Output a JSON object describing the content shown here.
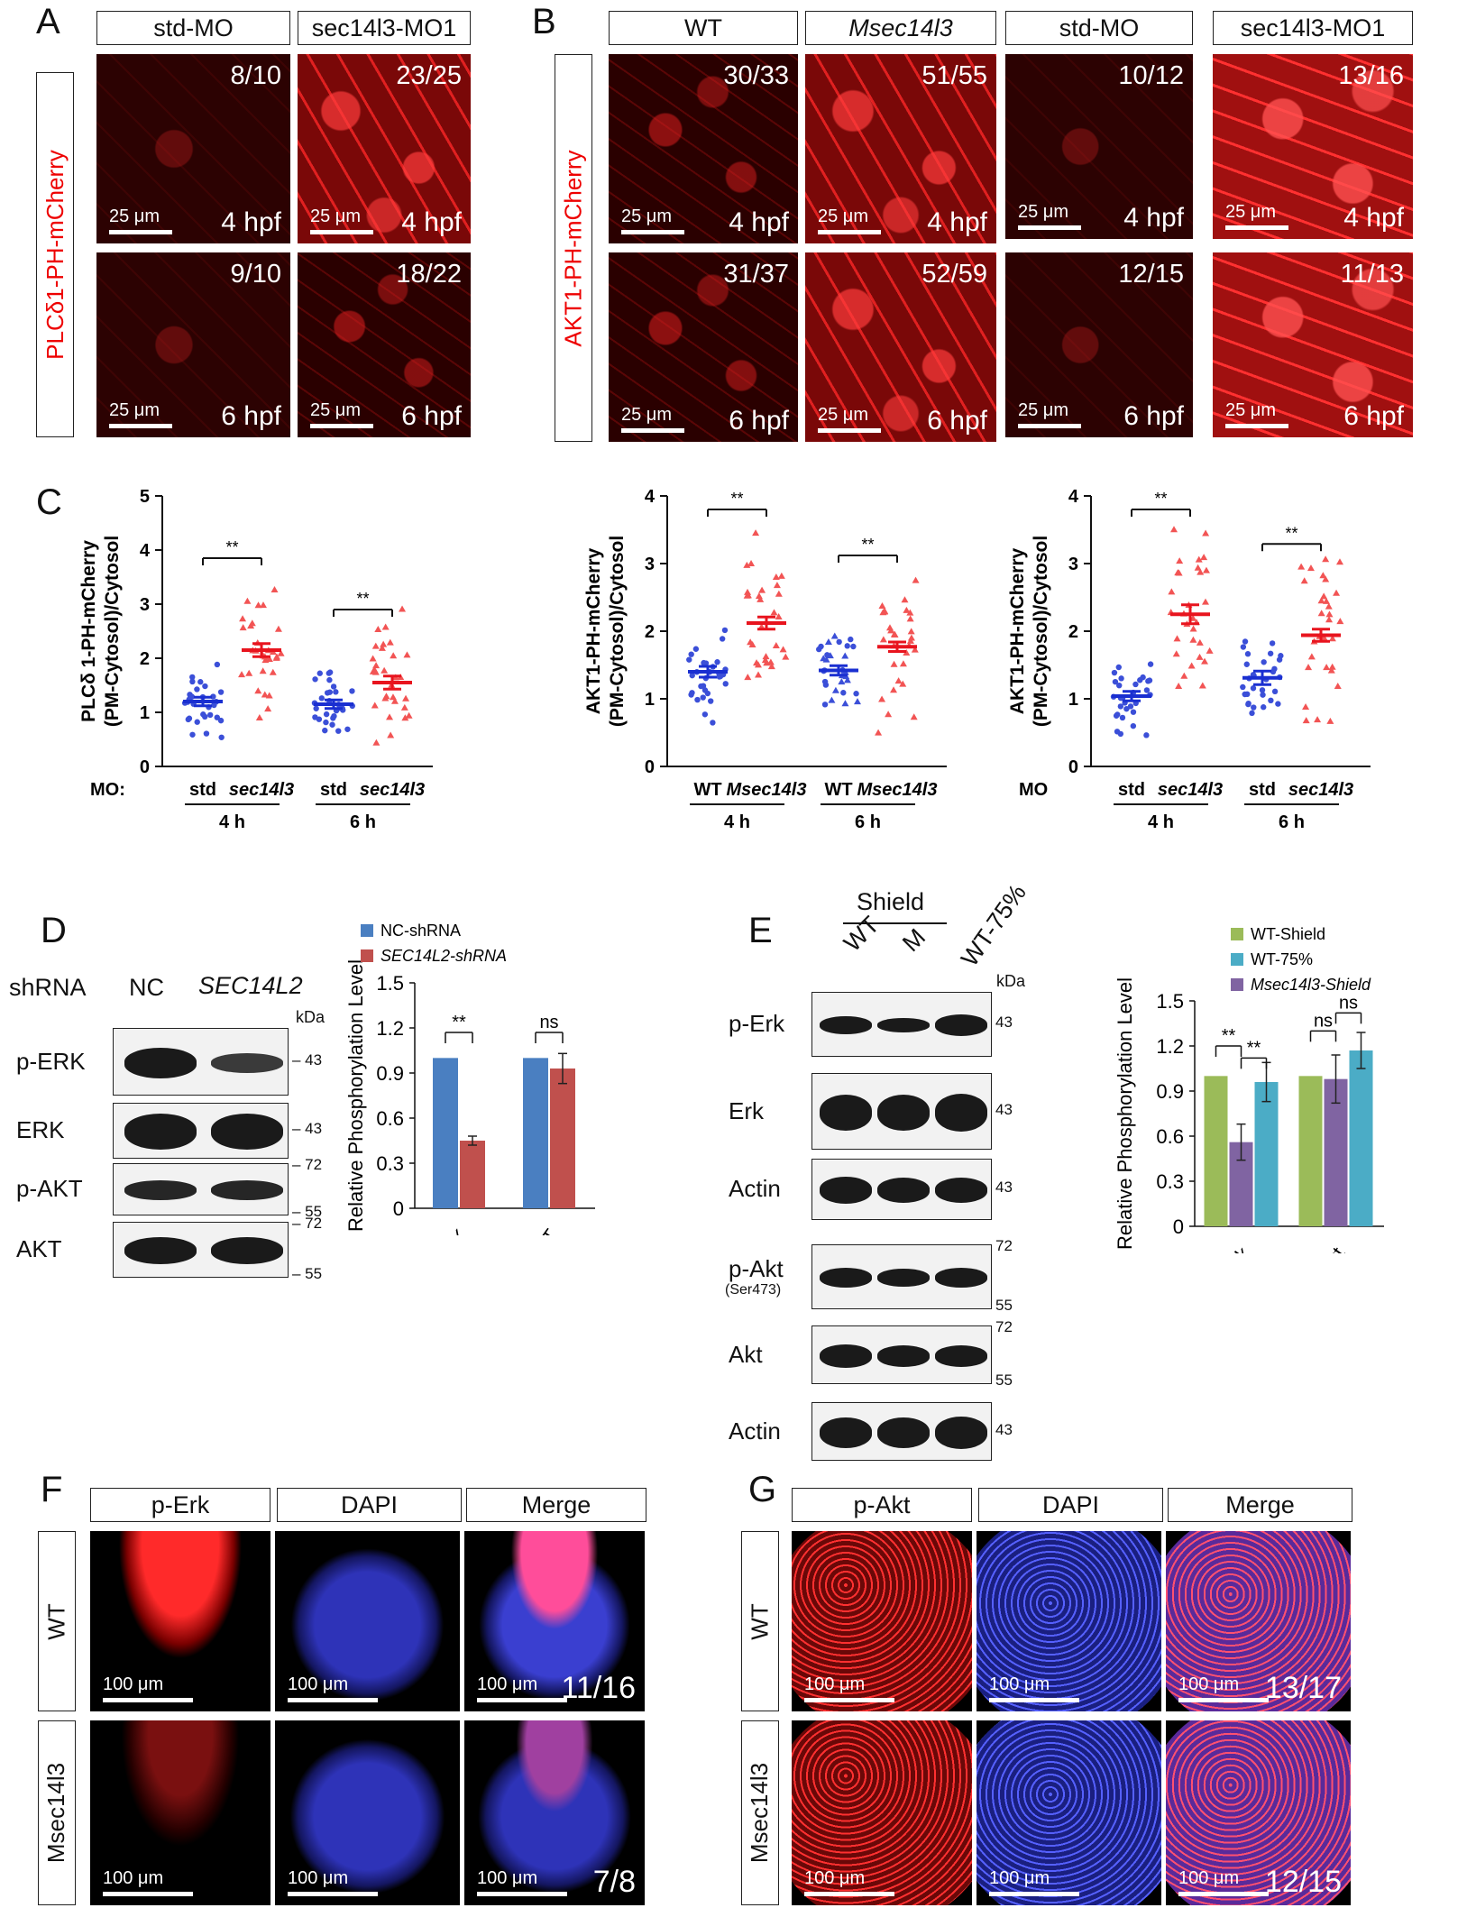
{
  "panelA": {
    "label": "A",
    "cols": [
      "std-MO",
      "sec14l3-MO1"
    ],
    "row_label": "PLCδ1-PH-mCherry",
    "cells": [
      {
        "count": "8/10",
        "time": "4 hpf",
        "scale": "25 μm"
      },
      {
        "count": "23/25",
        "time": "4 hpf",
        "scale": "25 μm"
      },
      {
        "count": "9/10",
        "time": "6 hpf",
        "scale": "25 μm"
      },
      {
        "count": "18/22",
        "time": "6 hpf",
        "scale": "25 μm"
      }
    ]
  },
  "panelB": {
    "label": "B",
    "cols": [
      "WT",
      "Msec14l3",
      "std-MO",
      "sec14l3-MO1"
    ],
    "row_label": "AKT1-PH-mCherry",
    "cells": [
      {
        "count": "30/33",
        "time": "4 hpf",
        "scale": "25 μm"
      },
      {
        "count": "51/55",
        "time": "4 hpf",
        "scale": "25 μm"
      },
      {
        "count": "10/12",
        "time": "4 hpf",
        "scale": "25 μm"
      },
      {
        "count": "13/16",
        "time": "4 hpf",
        "scale": "25 μm"
      },
      {
        "count": "31/37",
        "time": "6 hpf",
        "scale": "25 μm"
      },
      {
        "count": "52/59",
        "time": "6 hpf",
        "scale": "25 μm"
      },
      {
        "count": "12/15",
        "time": "6 hpf",
        "scale": "25 μm"
      },
      {
        "count": "11/13",
        "time": "6 hpf",
        "scale": "25 μm"
      }
    ]
  },
  "panelC": {
    "label": "C",
    "plot1": {
      "ylabel1": "PLCδ 1-PH-mCherry",
      "ylabel2": "(PM-Cytosol)/Cytosol",
      "yticks": [
        "0",
        "1",
        "2",
        "3",
        "4",
        "5"
      ],
      "row_prefix": "MO:",
      "xlabels": [
        "std",
        "sec14l3",
        "std",
        "sec14l3"
      ],
      "groups": [
        "4 h",
        "6 h"
      ],
      "sig": [
        "**",
        "**"
      ]
    },
    "plot2": {
      "ylabel1": "AKT1-PH-mCherry",
      "ylabel2": "(PM-Cytosol)/Cytosol",
      "yticks": [
        "0",
        "1",
        "2",
        "3",
        "4"
      ],
      "xlabels": [
        "WT",
        "Msec14l3",
        "WT",
        "Msec14l3"
      ],
      "groups": [
        "4 h",
        "6 h"
      ],
      "sig": [
        "**",
        "**"
      ]
    },
    "plot3": {
      "ylabel1": "AKT1-PH-mCherry",
      "ylabel2": "(PM-Cytosol)/Cytosol",
      "yticks": [
        "0",
        "1",
        "2",
        "3",
        "4"
      ],
      "row_prefix": "MO",
      "xlabels": [
        "std",
        "sec14l3",
        "std",
        "sec14l3"
      ],
      "groups": [
        "4 h",
        "6 h"
      ],
      "sig": [
        "**",
        "**"
      ]
    }
  },
  "panelD": {
    "label": "D",
    "shrna_label": "shRNA",
    "lanes": [
      "NC",
      "SEC14L2"
    ],
    "kda": "kDa",
    "rows": [
      {
        "name": "p-ERK",
        "marks": [
          "43"
        ]
      },
      {
        "name": "ERK",
        "marks": [
          "43"
        ]
      },
      {
        "name": "p-AKT",
        "marks": [
          "72",
          "55"
        ]
      },
      {
        "name": "AKT",
        "marks": [
          "72",
          "55"
        ]
      }
    ],
    "legend": [
      "NC-shRNA",
      "SEC14L2-shRNA"
    ],
    "ylabel": "Relative Phosphorylation Level",
    "sig": [
      "**",
      "ns"
    ]
  },
  "panelE": {
    "label": "E",
    "group": "Shield",
    "lanes": [
      "WT",
      "M",
      "WT-75%"
    ],
    "kda": "kDa",
    "rows": [
      {
        "name": "p-Erk",
        "sub": "",
        "marks": [
          "43"
        ]
      },
      {
        "name": "Erk",
        "sub": "",
        "marks": [
          "43"
        ]
      },
      {
        "name": "Actin",
        "sub": "",
        "marks": [
          "43"
        ]
      },
      {
        "name": "p-Akt",
        "sub": "(Ser473)",
        "marks": [
          "72",
          "55"
        ]
      },
      {
        "name": "Akt",
        "sub": "",
        "marks": [
          "72",
          "55"
        ]
      },
      {
        "name": "Actin",
        "sub": "",
        "marks": [
          "43"
        ]
      }
    ],
    "legend": [
      "WT-Shield",
      "WT-75%",
      "Msec14l3-Shield"
    ],
    "ylabel": "Relative Phosphorylation Level",
    "sig": [
      "**",
      "**",
      "ns",
      "ns"
    ]
  },
  "panelF": {
    "label": "F",
    "cols": [
      "p-Erk",
      "DAPI",
      "Merge"
    ],
    "rows": [
      "WT",
      "Msec14l3"
    ],
    "scale": "100 μm",
    "counts": [
      "11/16",
      "7/8"
    ]
  },
  "panelG": {
    "label": "G",
    "cols": [
      "p-Akt",
      "DAPI",
      "Merge"
    ],
    "rows": [
      "WT",
      "Msec14l3"
    ],
    "scale": "100 μm",
    "counts": [
      "13/17",
      "12/15"
    ]
  },
  "chart_data": [
    {
      "type": "scatter",
      "title": "",
      "ylabel": "PLCδ 1-PH-mCherry (PM-Cytosol)/Cytosol",
      "categories": [
        "std 4 h",
        "sec14l3 4 h",
        "std 6 h",
        "sec14l3 6 h"
      ],
      "ylim": [
        0,
        5
      ],
      "series": [
        {
          "values": [
            1.2,
            2.15,
            1.15,
            1.55
          ],
          "errors": [
            0.08,
            0.12,
            0.08,
            0.12
          ]
        }
      ]
    },
    {
      "type": "scatter",
      "title": "",
      "ylabel": "AKT1-PH-mCherry (PM-Cytosol)/Cytosol",
      "categories": [
        "WT 4 h",
        "Msec14l3 4 h",
        "WT 6 h",
        "Msec14l3 6 h"
      ],
      "ylim": [
        0,
        4
      ],
      "series": [
        {
          "values": [
            1.4,
            2.12,
            1.42,
            1.77
          ],
          "errors": [
            0.08,
            0.09,
            0.07,
            0.07
          ]
        }
      ]
    },
    {
      "type": "scatter",
      "title": "",
      "ylabel": "AKT1-PH-mCherry (PM-Cytosol)/Cytosol",
      "categories": [
        "std 4 h",
        "sec14l3 4 h",
        "std 6 h",
        "sec14l3 6 h"
      ],
      "ylim": [
        0,
        4
      ],
      "series": [
        {
          "values": [
            1.04,
            2.25,
            1.31,
            1.94
          ],
          "errors": [
            0.07,
            0.14,
            0.1,
            0.09
          ]
        }
      ]
    },
    {
      "type": "bar",
      "title": "",
      "ylabel": "Relative Phosphorylation Level",
      "categories": [
        "p-ERK/ERK",
        "p-AKT/AKT"
      ],
      "yticks": [
        "0",
        "0.3",
        "0.6",
        "0.9",
        "1.2",
        "1.5"
      ],
      "ylim": [
        0,
        1.5
      ],
      "series": [
        {
          "name": "NC-shRNA",
          "values": [
            1.0,
            1.0
          ],
          "errors": [
            0,
            0
          ],
          "color": "#4a7fc1"
        },
        {
          "name": "SEC14L2-shRNA",
          "values": [
            0.45,
            0.93
          ],
          "errors": [
            0.03,
            0.1
          ],
          "color": "#c0504d"
        }
      ]
    },
    {
      "type": "bar",
      "title": "",
      "ylabel": "Relative Phosphorylation Level",
      "categories": [
        "p-Erk/Erk",
        "p-Akt/Akt"
      ],
      "yticks": [
        "0",
        "0.3",
        "0.6",
        "0.9",
        "1.2",
        "1.5"
      ],
      "ylim": [
        0,
        1.5
      ],
      "series": [
        {
          "name": "WT-Shield",
          "values": [
            1.0,
            1.0
          ],
          "errors": [
            0,
            0
          ],
          "color": "#9bbb59"
        },
        {
          "name": "Msec14l3-Shield",
          "values": [
            0.56,
            0.98
          ],
          "errors": [
            0.12,
            0.16
          ],
          "color": "#8064a2"
        },
        {
          "name": "WT-75%",
          "values": [
            0.96,
            1.17
          ],
          "errors": [
            0.13,
            0.12
          ],
          "color": "#4bacc6"
        }
      ]
    }
  ]
}
